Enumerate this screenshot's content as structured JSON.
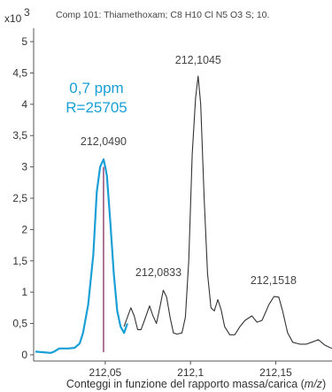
{
  "chart_data": {
    "type": "line",
    "title": "Comp 101: Thiamethoxam; C8 H10 Cl N5 O3 S; 10.",
    "y_multiplier_label": "x10",
    "y_multiplier_exponent": "3",
    "xlabel": "Conteggi in funzione del rapporto massa/carica (m/z)",
    "xlim": [
      212.008,
      212.183
    ],
    "ylim": [
      -0.1,
      5.1
    ],
    "x_ticks": [
      212.05,
      212.1,
      212.15
    ],
    "x_tick_labels": [
      "212,05",
      "212,1",
      "212,15"
    ],
    "y_ticks": [
      0,
      0.5,
      1,
      1.5,
      2,
      2.5,
      3,
      3.5,
      4,
      4.5,
      5
    ],
    "y_tick_labels": [
      "0",
      "0,5",
      "1",
      "1,5",
      "2",
      "2,5",
      "3",
      "3,5",
      "4",
      "4,5",
      "5"
    ],
    "series": [
      {
        "color": "#333333",
        "points": [
          [
            212.061,
            0.45
          ],
          [
            212.063,
            0.6
          ],
          [
            212.065,
            0.75
          ],
          [
            212.067,
            0.62
          ],
          [
            212.069,
            0.4
          ],
          [
            212.071,
            0.4
          ],
          [
            212.073,
            0.55
          ],
          [
            212.076,
            0.78
          ],
          [
            212.078,
            0.62
          ],
          [
            212.08,
            0.5
          ],
          [
            212.082,
            0.75
          ],
          [
            212.084,
            1.03
          ],
          [
            212.086,
            0.92
          ],
          [
            212.088,
            0.6
          ],
          [
            212.09,
            0.35
          ],
          [
            212.092,
            0.33
          ],
          [
            212.095,
            0.35
          ],
          [
            212.097,
            0.6
          ],
          [
            212.099,
            1.5
          ],
          [
            212.101,
            3.2
          ],
          [
            212.103,
            4.1
          ],
          [
            212.1045,
            4.45
          ],
          [
            212.106,
            4.0
          ],
          [
            212.108,
            2.5
          ],
          [
            212.11,
            1.3
          ],
          [
            212.112,
            0.75
          ],
          [
            212.114,
            0.7
          ],
          [
            212.116,
            0.88
          ],
          [
            212.118,
            0.72
          ],
          [
            212.12,
            0.45
          ],
          [
            212.123,
            0.32
          ],
          [
            212.126,
            0.32
          ],
          [
            212.129,
            0.45
          ],
          [
            212.132,
            0.55
          ],
          [
            212.136,
            0.62
          ],
          [
            212.139,
            0.52
          ],
          [
            212.142,
            0.55
          ],
          [
            212.146,
            0.8
          ],
          [
            212.149,
            0.93
          ],
          [
            212.1518,
            0.92
          ],
          [
            212.154,
            0.7
          ],
          [
            212.157,
            0.35
          ],
          [
            212.16,
            0.2
          ],
          [
            212.164,
            0.17
          ],
          [
            212.168,
            0.17
          ],
          [
            212.171,
            0.2
          ],
          [
            212.175,
            0.24
          ],
          [
            212.179,
            0.15
          ],
          [
            212.183,
            0.1
          ]
        ]
      },
      {
        "color": "#1a9fd6",
        "points": [
          [
            212.009,
            0.05
          ],
          [
            212.014,
            0.04
          ],
          [
            212.018,
            0.03
          ],
          [
            212.02,
            0.05
          ],
          [
            212.023,
            0.1
          ],
          [
            212.028,
            0.1
          ],
          [
            212.032,
            0.11
          ],
          [
            212.035,
            0.18
          ],
          [
            212.037,
            0.35
          ],
          [
            212.04,
            0.8
          ],
          [
            212.043,
            1.6
          ],
          [
            212.045,
            2.6
          ],
          [
            212.047,
            3.0
          ],
          [
            212.049,
            3.12
          ],
          [
            212.05,
            3.0
          ],
          [
            212.051,
            2.85
          ],
          [
            212.053,
            2.1
          ],
          [
            212.055,
            1.3
          ],
          [
            212.057,
            0.7
          ],
          [
            212.059,
            0.45
          ],
          [
            212.061,
            0.35
          ],
          [
            212.063,
            0.5
          ]
        ]
      }
    ],
    "vertical_marker": {
      "x": 212.049,
      "color": "#7a1e5a"
    },
    "peak_labels": [
      {
        "text": "212,0490",
        "x": 212.049,
        "y": 3.12,
        "color": "#1a9fd6"
      },
      {
        "text": "212,1045",
        "x": 212.1045,
        "y": 4.45,
        "color": "#444444"
      },
      {
        "text": "212,0833",
        "x": 212.0833,
        "y": 1.03,
        "color": "#444444"
      },
      {
        "text": "212,1518",
        "x": 212.1518,
        "y": 0.92,
        "color": "#444444"
      }
    ],
    "annotations": [
      {
        "text": "0,7 ppm",
        "color": "#1a9fd6"
      },
      {
        "text": "R=25705",
        "color": "#1a9fd6"
      }
    ],
    "grid": false,
    "legend": "none"
  }
}
